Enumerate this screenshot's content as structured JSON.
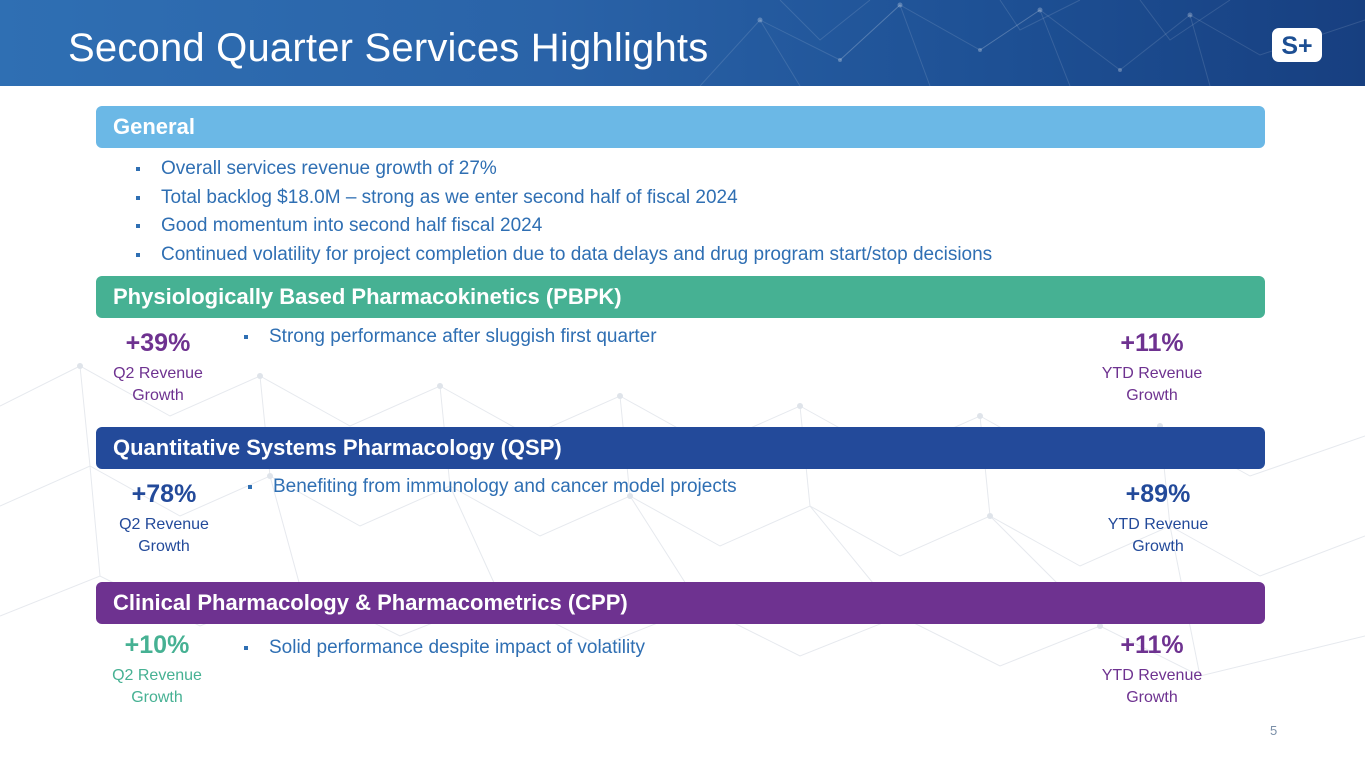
{
  "slide": {
    "title": "Second Quarter Services Highlights",
    "page_number": "5",
    "logo_text": "S+"
  },
  "general": {
    "heading": "General",
    "bullets": [
      "Overall services revenue growth of 27%",
      "Total backlog $18.0M – strong as we enter second half of fiscal 2024",
      "Good momentum into second half fiscal 2024",
      "Continued volatility for project completion due to data delays and drug program start/stop decisions"
    ]
  },
  "sections": [
    {
      "heading": "Physiologically Based Pharmacokinetics (PBPK)",
      "bullet": "Strong performance after sluggish first quarter",
      "q2_value": "+39%",
      "q2_label_1": "Q2 Revenue",
      "q2_label_2": "Growth",
      "ytd_value": "+11%",
      "ytd_label_1": "YTD Revenue",
      "ytd_label_2": "Growth"
    },
    {
      "heading": "Quantitative Systems Pharmacology (QSP)",
      "bullet": "Benefiting from immunology and cancer model projects",
      "q2_value": "+78%",
      "q2_label_1": "Q2 Revenue",
      "q2_label_2": "Growth",
      "ytd_value": "+89%",
      "ytd_label_1": "YTD Revenue",
      "ytd_label_2": "Growth"
    },
    {
      "heading": "Clinical Pharmacology & Pharmacometrics (CPP)",
      "bullet": "Solid performance despite impact of volatility",
      "q2_value": "+10%",
      "q2_label_1": "Q2 Revenue",
      "q2_label_2": "Growth",
      "ytd_value": "+11%",
      "ytd_label_1": "YTD Revenue",
      "ytd_label_2": "Growth"
    }
  ],
  "colors": {
    "header": "#2a63a8",
    "general": "#6bb8e6",
    "pbpk": "#46b193",
    "qsp": "#234a9a",
    "cpp": "#6e3290",
    "bullet_text": "#2f6fb3"
  }
}
